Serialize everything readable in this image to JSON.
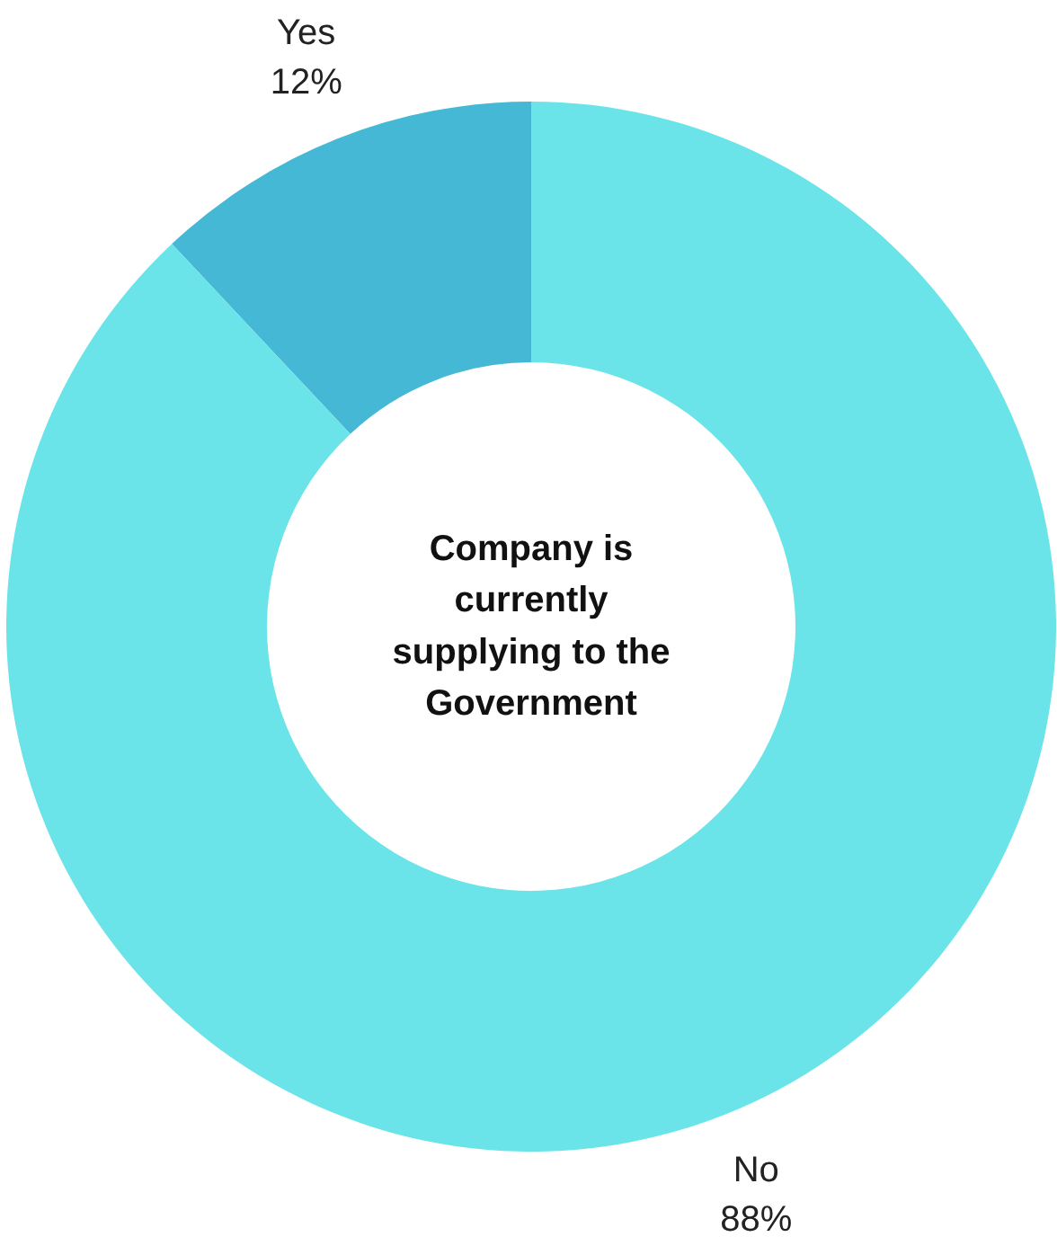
{
  "chart_data": {
    "type": "donut",
    "title": "Company is currently supplying to the Government",
    "categories": [
      "Yes",
      "No"
    ],
    "values": [
      12,
      88
    ],
    "colors": [
      "#45b8d6",
      "#6ae4e8"
    ],
    "value_labels": [
      "12%",
      "88%"
    ]
  }
}
